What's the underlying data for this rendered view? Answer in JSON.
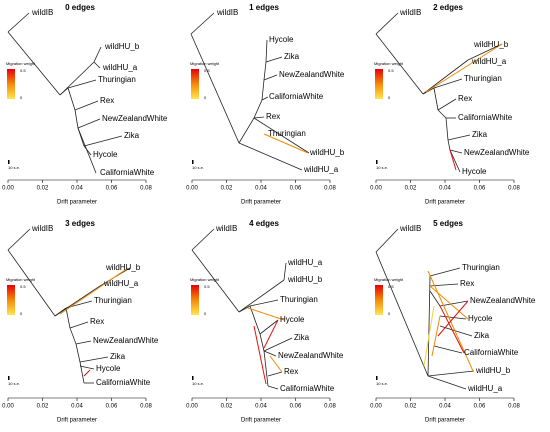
{
  "axis": {
    "ticks": [
      "0.00",
      "0.02",
      "0.04",
      "0.06",
      "0.08"
    ],
    "label": "Drift parameter"
  },
  "legend": {
    "title": "Migration weight",
    "ticks": [
      "0.5",
      "0"
    ],
    "scale": "10 s.e."
  },
  "panels": [
    {
      "title": "0 edges",
      "leaves": [
        "wildIB",
        "wildHU_b",
        "wildHU_a",
        "Thuringian",
        "Rex",
        "NewZealandWhite",
        "Zika",
        "Hycole",
        "CaliforniaWhite"
      ]
    },
    {
      "title": "1 edges",
      "leaves": [
        "wildIB",
        "Hycole",
        "Zika",
        "NewZealandWhite",
        "CaliforniaWhite",
        "Rex",
        "Thuringian",
        "wildHU_b",
        "wildHU_a"
      ]
    },
    {
      "title": "2 edges",
      "leaves": [
        "wildIB",
        "wildHU_b",
        "wildHU_a",
        "Thuringian",
        "Rex",
        "CaliforniaWhite",
        "Zika",
        "NewZealandWhite",
        "Hycole"
      ]
    },
    {
      "title": "3 edges",
      "leaves": [
        "wildIB",
        "wildHU_b",
        "wildHU_a",
        "Thuringian",
        "Rex",
        "NewZealandWhite",
        "Zika",
        "Hycole",
        "CaliforniaWhite"
      ]
    },
    {
      "title": "4 edges",
      "leaves": [
        "wildIB",
        "wildHU_a",
        "wildHU_b",
        "Thuringian",
        "Hycole",
        "Zika",
        "NewZealandWhite",
        "Rex",
        "CaliforniaWhite"
      ]
    },
    {
      "title": "5 edges",
      "leaves": [
        "wildIB",
        "Thuringian",
        "Rex",
        "NewZealandWhite",
        "Hycole",
        "Zika",
        "CaliforniaWhite",
        "wildHU_b",
        "wildHU_a"
      ]
    }
  ]
}
